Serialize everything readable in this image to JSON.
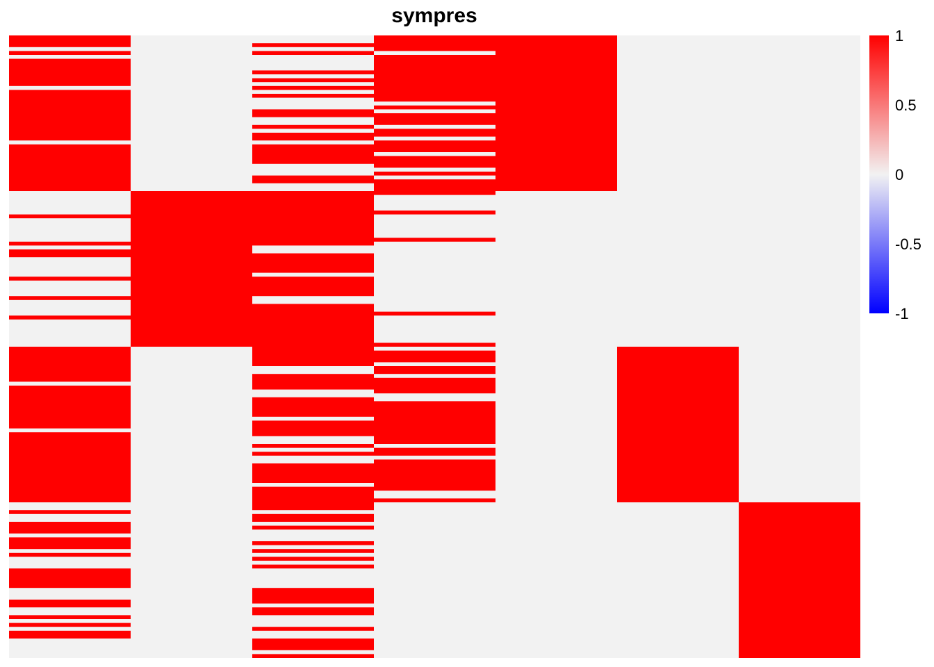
{
  "chart_data": {
    "type": "heatmap",
    "title": "sympres",
    "n_columns": 7,
    "n_rows": 160,
    "value_range": [
      -1,
      1
    ],
    "colors": {
      "high": "#ff0000",
      "mid": "#f2f2f2",
      "low": "#0000ff"
    },
    "legend": {
      "position": "right",
      "ticks": [
        "1",
        "0.5",
        "0",
        "-0.5",
        "-1"
      ]
    },
    "columns": [
      {
        "filled_rows": [
          [
            0,
            2
          ],
          [
            4,
            4
          ],
          [
            6,
            12
          ],
          [
            14,
            26
          ],
          [
            28,
            39
          ],
          [
            46,
            46
          ],
          [
            53,
            53
          ],
          [
            55,
            56
          ],
          [
            62,
            62
          ],
          [
            67,
            67
          ],
          [
            72,
            72
          ],
          [
            80,
            88
          ],
          [
            90,
            100
          ],
          [
            102,
            119
          ],
          [
            122,
            122
          ],
          [
            125,
            127
          ],
          [
            129,
            131
          ],
          [
            133,
            133
          ],
          [
            137,
            141
          ],
          [
            145,
            146
          ],
          [
            149,
            149
          ],
          [
            151,
            151
          ],
          [
            153,
            154
          ]
        ]
      },
      {
        "filled_rows": [
          [
            40,
            79
          ]
        ]
      },
      {
        "filled_rows": [
          [
            2,
            2
          ],
          [
            4,
            4
          ],
          [
            9,
            9
          ],
          [
            11,
            11
          ],
          [
            13,
            13
          ],
          [
            15,
            15
          ],
          [
            19,
            20
          ],
          [
            23,
            23
          ],
          [
            25,
            26
          ],
          [
            28,
            32
          ],
          [
            36,
            37
          ],
          [
            40,
            53
          ],
          [
            56,
            60
          ],
          [
            62,
            66
          ],
          [
            69,
            84
          ],
          [
            87,
            90
          ],
          [
            93,
            97
          ],
          [
            99,
            102
          ],
          [
            105,
            105
          ],
          [
            107,
            107
          ],
          [
            110,
            114
          ],
          [
            116,
            121
          ],
          [
            123,
            124
          ],
          [
            126,
            126
          ],
          [
            130,
            130
          ],
          [
            132,
            132
          ],
          [
            134,
            134
          ],
          [
            136,
            136
          ],
          [
            142,
            145
          ],
          [
            147,
            148
          ],
          [
            152,
            152
          ],
          [
            155,
            157
          ],
          [
            159,
            159
          ]
        ]
      },
      {
        "filled_rows": [
          [
            0,
            3
          ],
          [
            5,
            16
          ],
          [
            18,
            18
          ],
          [
            20,
            22
          ],
          [
            24,
            25
          ],
          [
            27,
            29
          ],
          [
            31,
            33
          ],
          [
            35,
            35
          ],
          [
            37,
            40
          ],
          [
            45,
            45
          ],
          [
            52,
            52
          ],
          [
            71,
            71
          ],
          [
            79,
            79
          ],
          [
            81,
            83
          ],
          [
            85,
            86
          ],
          [
            88,
            91
          ],
          [
            94,
            104
          ],
          [
            106,
            107
          ],
          [
            109,
            116
          ],
          [
            119,
            119
          ]
        ]
      },
      {
        "filled_rows": [
          [
            0,
            39
          ]
        ]
      },
      {
        "filled_rows": [
          [
            80,
            119
          ]
        ]
      },
      {
        "filled_rows": [
          [
            120,
            159
          ]
        ]
      }
    ]
  }
}
